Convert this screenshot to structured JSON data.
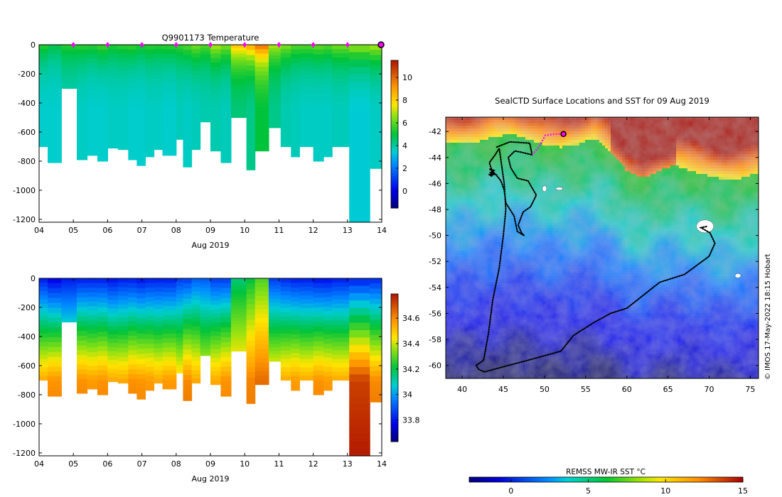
{
  "chart_data": [
    {
      "type": "heatmap",
      "title": "Q9901173  Temperature",
      "xlabel": "Aug 2019",
      "ylabel": "",
      "x_ticks": [
        "04",
        "05",
        "06",
        "07",
        "08",
        "09",
        "10",
        "11",
        "12",
        "13",
        "14"
      ],
      "xlim": [
        4,
        14
      ],
      "y_ticks": [
        0,
        -200,
        -400,
        -600,
        -800,
        -1000,
        -1200
      ],
      "ylim": [
        -1220,
        0
      ],
      "colorbar": {
        "ticks": [
          10,
          8,
          6,
          4,
          2,
          0
        ],
        "range": [
          -1.5,
          11.5
        ]
      },
      "profile_markers_day": [
        5,
        6,
        7,
        8,
        9,
        10,
        11,
        12,
        13,
        14
      ],
      "current_marker_day": 14,
      "profiles": [
        {
          "t0": 4.0,
          "t1": 4.25,
          "depth": 700,
          "surface": 5.5,
          "deep": 3.5
        },
        {
          "t0": 4.25,
          "t1": 4.65,
          "depth": 810,
          "surface": 5.0,
          "deep": 3.5
        },
        {
          "t0": 4.65,
          "t1": 5.1,
          "depth": 300,
          "surface": 5.5,
          "deep": 3.8
        },
        {
          "t0": 5.1,
          "t1": 5.4,
          "depth": 790,
          "surface": 5.6,
          "deep": 3.6
        },
        {
          "t0": 5.4,
          "t1": 5.7,
          "depth": 760,
          "surface": 5.5,
          "deep": 3.5
        },
        {
          "t0": 5.7,
          "t1": 6.0,
          "depth": 800,
          "surface": 5.8,
          "deep": 3.5
        },
        {
          "t0": 6.0,
          "t1": 6.3,
          "depth": 710,
          "surface": 5.4,
          "deep": 3.6
        },
        {
          "t0": 6.3,
          "t1": 6.6,
          "depth": 720,
          "surface": 5.6,
          "deep": 3.6
        },
        {
          "t0": 6.6,
          "t1": 6.85,
          "depth": 790,
          "surface": 5.7,
          "deep": 3.5
        },
        {
          "t0": 6.85,
          "t1": 7.1,
          "depth": 830,
          "surface": 5.4,
          "deep": 3.5
        },
        {
          "t0": 7.1,
          "t1": 7.35,
          "depth": 770,
          "surface": 5.6,
          "deep": 3.6
        },
        {
          "t0": 7.35,
          "t1": 7.6,
          "depth": 720,
          "surface": 5.5,
          "deep": 3.6
        },
        {
          "t0": 7.6,
          "t1": 8.0,
          "depth": 760,
          "surface": 5.6,
          "deep": 3.5
        },
        {
          "t0": 8.0,
          "t1": 8.2,
          "depth": 650,
          "surface": 5.7,
          "deep": 3.7
        },
        {
          "t0": 8.2,
          "t1": 8.45,
          "depth": 840,
          "surface": 6.0,
          "deep": 3.6
        },
        {
          "t0": 8.45,
          "t1": 8.7,
          "depth": 720,
          "surface": 6.4,
          "deep": 3.7
        },
        {
          "t0": 8.7,
          "t1": 9.0,
          "depth": 530,
          "surface": 6.0,
          "deep": 3.8
        },
        {
          "t0": 9.0,
          "t1": 9.3,
          "depth": 730,
          "surface": 7.0,
          "deep": 3.8
        },
        {
          "t0": 9.3,
          "t1": 9.6,
          "depth": 810,
          "surface": 6.5,
          "deep": 3.7
        },
        {
          "t0": 9.6,
          "t1": 10.05,
          "depth": 500,
          "surface": 8.5,
          "deep": 4.4
        },
        {
          "t0": 10.05,
          "t1": 10.3,
          "depth": 860,
          "surface": 9.0,
          "deep": 4.2
        },
        {
          "t0": 10.3,
          "t1": 10.7,
          "depth": 730,
          "surface": 10.0,
          "deep": 5.0
        },
        {
          "t0": 10.7,
          "t1": 11.05,
          "depth": 570,
          "surface": 7.0,
          "deep": 4.2
        },
        {
          "t0": 11.05,
          "t1": 11.35,
          "depth": 700,
          "surface": 6.5,
          "deep": 3.8
        },
        {
          "t0": 11.35,
          "t1": 11.6,
          "depth": 770,
          "surface": 6.0,
          "deep": 3.7
        },
        {
          "t0": 11.6,
          "t1": 12.0,
          "depth": 700,
          "surface": 6.0,
          "deep": 3.6
        },
        {
          "t0": 12.0,
          "t1": 12.3,
          "depth": 800,
          "surface": 6.2,
          "deep": 3.6
        },
        {
          "t0": 12.3,
          "t1": 12.55,
          "depth": 770,
          "surface": 6.0,
          "deep": 3.6
        },
        {
          "t0": 12.55,
          "t1": 13.05,
          "depth": 700,
          "surface": 6.4,
          "deep": 3.7
        },
        {
          "t0": 13.05,
          "t1": 13.65,
          "depth": 1220,
          "surface": 6.8,
          "deep": 3.4
        },
        {
          "t0": 13.65,
          "t1": 14.0,
          "depth": 850,
          "surface": 7.0,
          "deep": 3.6
        }
      ]
    },
    {
      "type": "heatmap",
      "title": "",
      "xlabel": "Aug 2019",
      "ylabel": "",
      "x_ticks": [
        "04",
        "05",
        "06",
        "07",
        "08",
        "09",
        "10",
        "11",
        "12",
        "13",
        "14"
      ],
      "xlim": [
        4,
        14
      ],
      "y_ticks": [
        0,
        -200,
        -400,
        -600,
        -800,
        -1000,
        -1200
      ],
      "ylim": [
        -1220,
        0
      ],
      "colorbar": {
        "ticks": [
          34.6,
          34.4,
          34.2,
          34,
          33.8
        ],
        "range": [
          33.63,
          34.79
        ]
      },
      "profiles": [
        {
          "t0": 4.0,
          "t1": 4.25,
          "depth": 700,
          "surface": 33.8,
          "deep": 34.55
        },
        {
          "t0": 4.25,
          "t1": 4.65,
          "depth": 810,
          "surface": 33.75,
          "deep": 34.6
        },
        {
          "t0": 4.65,
          "t1": 5.1,
          "depth": 300,
          "surface": 33.8,
          "deep": 34.3
        },
        {
          "t0": 5.1,
          "t1": 5.4,
          "depth": 790,
          "surface": 33.8,
          "deep": 34.6
        },
        {
          "t0": 5.4,
          "t1": 5.7,
          "depth": 760,
          "surface": 33.8,
          "deep": 34.58
        },
        {
          "t0": 5.7,
          "t1": 6.0,
          "depth": 800,
          "surface": 33.8,
          "deep": 34.6
        },
        {
          "t0": 6.0,
          "t1": 6.3,
          "depth": 710,
          "surface": 33.78,
          "deep": 34.55
        },
        {
          "t0": 6.3,
          "t1": 6.6,
          "depth": 720,
          "surface": 33.8,
          "deep": 34.55
        },
        {
          "t0": 6.6,
          "t1": 6.85,
          "depth": 790,
          "surface": 33.8,
          "deep": 34.6
        },
        {
          "t0": 6.85,
          "t1": 7.1,
          "depth": 830,
          "surface": 33.78,
          "deep": 34.6
        },
        {
          "t0": 7.1,
          "t1": 7.35,
          "depth": 770,
          "surface": 33.8,
          "deep": 34.58
        },
        {
          "t0": 7.35,
          "t1": 7.6,
          "depth": 720,
          "surface": 33.8,
          "deep": 34.55
        },
        {
          "t0": 7.6,
          "t1": 8.0,
          "depth": 760,
          "surface": 33.8,
          "deep": 34.58
        },
        {
          "t0": 8.0,
          "t1": 8.2,
          "depth": 650,
          "surface": 33.85,
          "deep": 34.5
        },
        {
          "t0": 8.2,
          "t1": 8.45,
          "depth": 840,
          "surface": 33.85,
          "deep": 34.62
        },
        {
          "t0": 8.45,
          "t1": 8.7,
          "depth": 720,
          "surface": 33.9,
          "deep": 34.55
        },
        {
          "t0": 8.7,
          "t1": 9.0,
          "depth": 530,
          "surface": 33.9,
          "deep": 34.45
        },
        {
          "t0": 9.0,
          "t1": 9.3,
          "depth": 730,
          "surface": 33.85,
          "deep": 34.55
        },
        {
          "t0": 9.3,
          "t1": 9.6,
          "depth": 810,
          "surface": 33.85,
          "deep": 34.6
        },
        {
          "t0": 9.6,
          "t1": 10.05,
          "depth": 500,
          "surface": 34.15,
          "deep": 34.5
        },
        {
          "t0": 10.05,
          "t1": 10.3,
          "depth": 860,
          "surface": 34.2,
          "deep": 34.62
        },
        {
          "t0": 10.3,
          "t1": 10.7,
          "depth": 730,
          "surface": 34.28,
          "deep": 34.65
        },
        {
          "t0": 10.7,
          "t1": 11.05,
          "depth": 570,
          "surface": 33.85,
          "deep": 34.5
        },
        {
          "t0": 11.05,
          "t1": 11.35,
          "depth": 700,
          "surface": 33.82,
          "deep": 34.55
        },
        {
          "t0": 11.35,
          "t1": 11.6,
          "depth": 770,
          "surface": 33.8,
          "deep": 34.58
        },
        {
          "t0": 11.6,
          "t1": 12.0,
          "depth": 700,
          "surface": 33.8,
          "deep": 34.55
        },
        {
          "t0": 12.0,
          "t1": 12.3,
          "depth": 800,
          "surface": 33.78,
          "deep": 34.6
        },
        {
          "t0": 12.3,
          "t1": 12.55,
          "depth": 770,
          "surface": 33.78,
          "deep": 34.58
        },
        {
          "t0": 12.55,
          "t1": 13.05,
          "depth": 700,
          "surface": 33.8,
          "deep": 34.55
        },
        {
          "t0": 13.05,
          "t1": 13.65,
          "depth": 1220,
          "surface": 33.8,
          "deep": 34.78
        },
        {
          "t0": 13.65,
          "t1": 14.0,
          "depth": 850,
          "surface": 33.82,
          "deep": 34.62
        }
      ]
    },
    {
      "type": "map",
      "title": "SealCTD Surface Locations and SST for 09 Aug 2019",
      "x_ticks": [
        40,
        45,
        50,
        55,
        60,
        65,
        70,
        75
      ],
      "xlim": [
        38,
        76
      ],
      "y_ticks": [
        -42,
        -44,
        -46,
        -48,
        -50,
        -52,
        -54,
        -56,
        -58,
        -60
      ],
      "ylim": [
        -61,
        -40.9
      ],
      "colorbar": {
        "label": "REMSS MW-IR SST °C",
        "ticks": [
          0,
          5,
          10,
          15
        ],
        "range": [
          -2.7,
          15
        ]
      },
      "track": [
        [
          44.2,
          -43.2
        ],
        [
          45.8,
          -42.8
        ],
        [
          48.2,
          -42.9
        ],
        [
          48.5,
          -43.8
        ],
        [
          47.2,
          -43.6
        ],
        [
          46.4,
          -43.5
        ],
        [
          45.6,
          -44.0
        ],
        [
          45.9,
          -44.8
        ],
        [
          46.7,
          -45.6
        ],
        [
          48.0,
          -45.8
        ],
        [
          49.0,
          -46.9
        ],
        [
          48.3,
          -47.8
        ],
        [
          47.4,
          -48.2
        ],
        [
          46.8,
          -49.2
        ],
        [
          47.2,
          -49.8
        ],
        [
          47.5,
          -50.0
        ],
        [
          46.7,
          -49.7
        ],
        [
          46.3,
          -48.5
        ],
        [
          45.3,
          -47.5
        ],
        [
          45.1,
          -46.5
        ],
        [
          44.7,
          -45.8
        ],
        [
          44.2,
          -45.4
        ],
        [
          43.6,
          -45.0
        ],
        [
          43.3,
          -44.4
        ],
        [
          44.0,
          -43.8
        ],
        [
          44.5,
          -43.3
        ],
        [
          45.1,
          -46.0
        ],
        [
          45.3,
          -48.0
        ],
        [
          45.0,
          -50.0
        ],
        [
          44.5,
          -52.5
        ],
        [
          43.7,
          -55.0
        ],
        [
          43.2,
          -57.5
        ],
        [
          42.6,
          -59.6
        ],
        [
          41.7,
          -60.0
        ],
        [
          42.0,
          -60.3
        ],
        [
          42.7,
          -60.5
        ],
        [
          45.0,
          -60.1
        ],
        [
          48.0,
          -59.6
        ],
        [
          52.0,
          -58.9
        ],
        [
          53.5,
          -57.7
        ],
        [
          56.0,
          -56.7
        ],
        [
          58.0,
          -56.0
        ],
        [
          60.0,
          -55.6
        ],
        [
          62.0,
          -54.6
        ],
        [
          64.0,
          -53.6
        ],
        [
          67.0,
          -53.0
        ],
        [
          70.0,
          -51.6
        ],
        [
          70.7,
          -50.6
        ],
        [
          70.1,
          -49.8
        ],
        [
          69.0,
          -49.4
        ],
        [
          69.8,
          -49.3
        ]
      ],
      "recent_track": [
        [
          48.5,
          -43.8
        ],
        [
          49.3,
          -43.2
        ],
        [
          50.1,
          -42.3
        ],
        [
          51.2,
          -42.2
        ],
        [
          52.3,
          -42.2
        ]
      ],
      "current_position": [
        52.3,
        -42.2
      ],
      "sst_front_north_lon": [
        38,
        40,
        42,
        44,
        46,
        48,
        50,
        52,
        54,
        56,
        58,
        60,
        62,
        64,
        66,
        68,
        70,
        72,
        74,
        76
      ],
      "sst_front_north_lat": [
        -42.9,
        -42.9,
        -42.8,
        -42.4,
        -42.2,
        -42.6,
        -43.0,
        -43.2,
        -43.0,
        -42.5,
        -43.5,
        -45.0,
        -45.6,
        -45.0,
        -44.6,
        -45.1,
        -45.4,
        -45.7,
        -45.6,
        -45.2
      ]
    }
  ],
  "credit": "© IMOS 17-May-2022 18:15 Hobart"
}
